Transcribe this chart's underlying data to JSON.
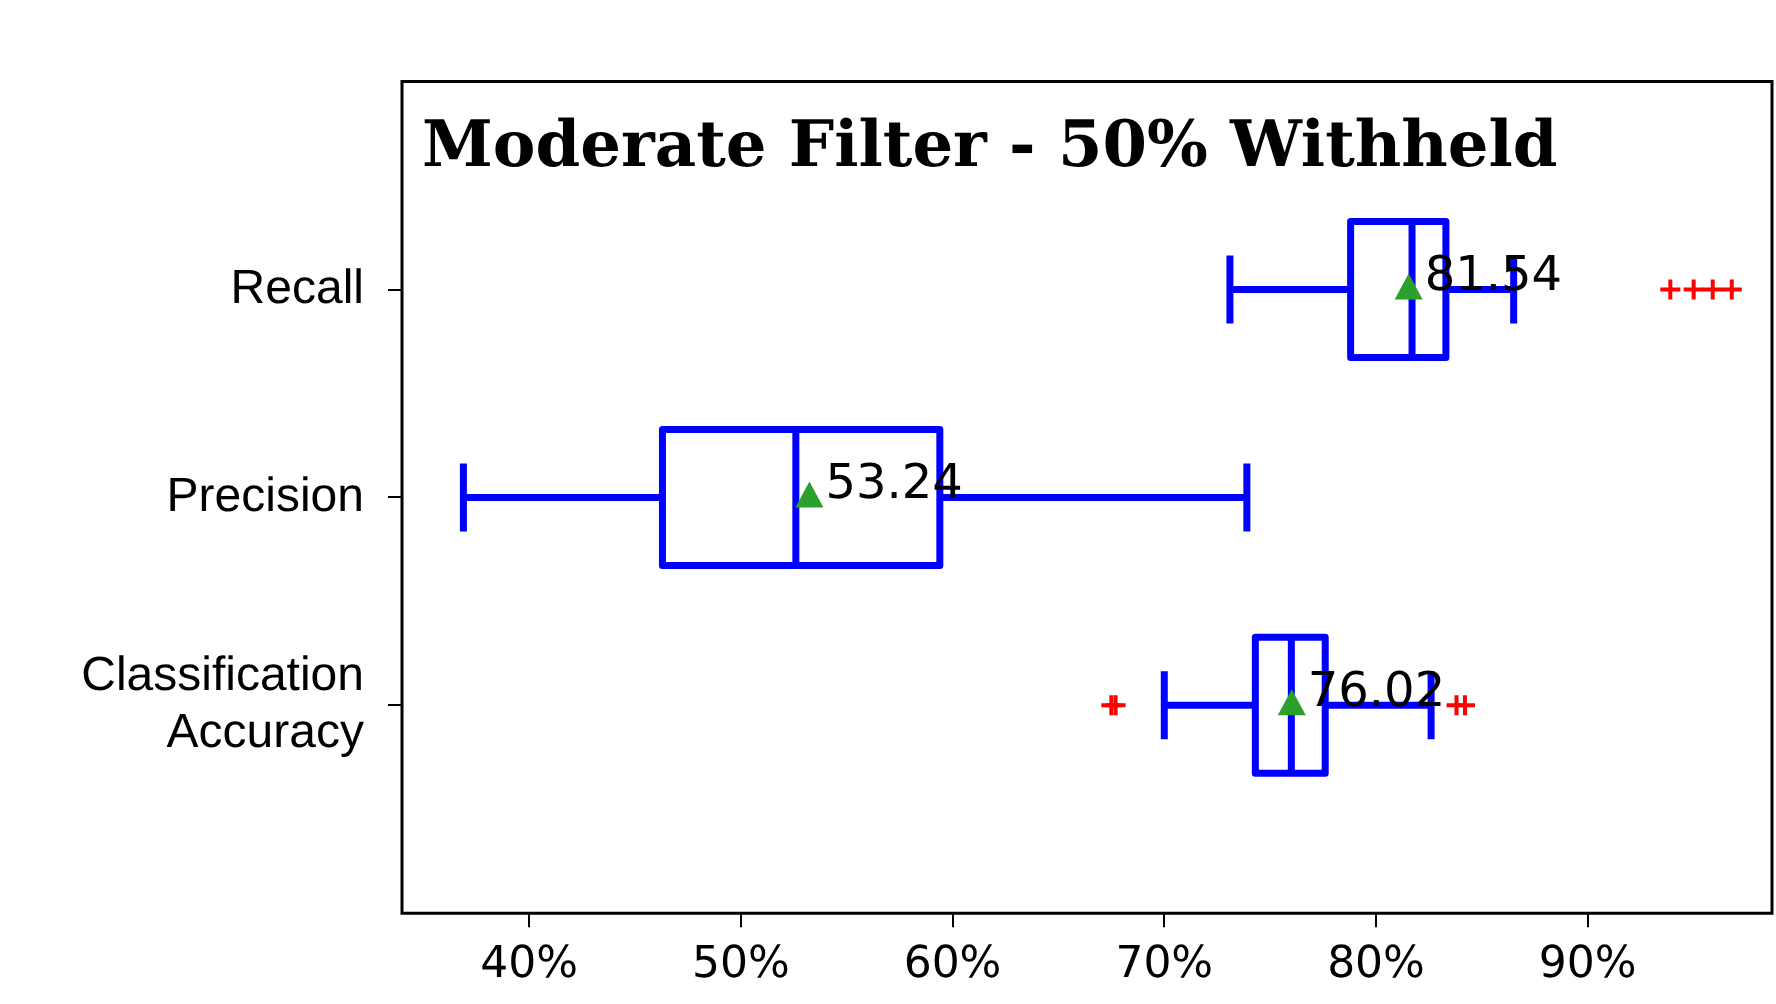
{
  "chart_data": {
    "type": "box",
    "title": "Moderate Filter - 50% Withheld",
    "categories": [
      "Recall",
      "Precision",
      "Classification Accuracy"
    ],
    "orientation": "horizontal",
    "color": "#0000ff",
    "boxes": [
      {
        "low": 73.1,
        "q1": 78.8,
        "median": 81.7,
        "q3": 83.3,
        "high": 86.5,
        "mean": 81.54,
        "outliers": [
          93.9,
          95.0,
          95.9,
          96.8
        ]
      },
      {
        "low": 36.9,
        "q1": 46.3,
        "median": 52.6,
        "q3": 59.4,
        "high": 73.9,
        "mean": 53.24
      },
      {
        "low": 70.0,
        "q1": 74.3,
        "median": 76.0,
        "q3": 77.6,
        "high": 82.6,
        "mean": 76.02,
        "outliers": [
          67.5,
          67.7,
          83.8,
          84.2
        ]
      }
    ],
    "xlim": [
      34,
      98.7
    ],
    "xticks": [
      {
        "value": 40,
        "label": "40%"
      },
      {
        "value": 50,
        "label": "50%"
      },
      {
        "value": 60,
        "label": "60%"
      },
      {
        "value": 70,
        "label": "70%"
      },
      {
        "value": 80,
        "label": "80%"
      },
      {
        "value": 90,
        "label": "90%"
      }
    ],
    "annotations": [
      "81.54",
      "53.24",
      "76.02"
    ],
    "grid": false,
    "legend": false
  }
}
